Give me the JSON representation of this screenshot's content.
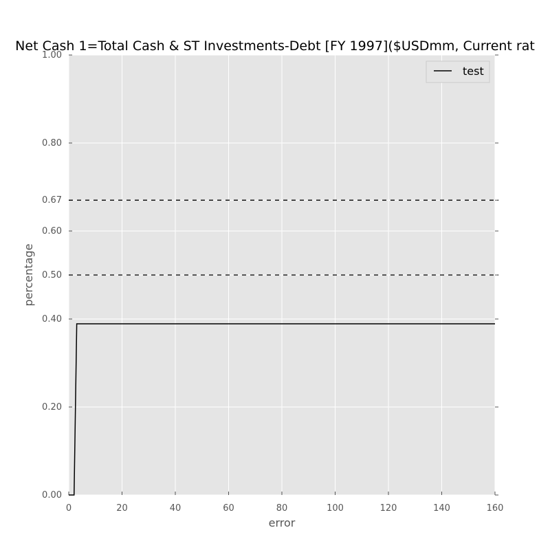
{
  "chart_data": {
    "type": "line",
    "title": "Net Cash 1=Total Cash & ST Investments-Debt [FY 1997]($USDmm, Current rat",
    "xlabel": "error",
    "ylabel": "percentage",
    "xlim": [
      0,
      160
    ],
    "ylim": [
      0,
      1
    ],
    "x_ticks": [
      0,
      20,
      40,
      60,
      80,
      100,
      120,
      140,
      160
    ],
    "x_tick_labels": [
      "0",
      "20",
      "40",
      "60",
      "80",
      "100",
      "120",
      "140",
      "160"
    ],
    "y_ticks": [
      0,
      0.2,
      0.4,
      0.5,
      0.6,
      0.67,
      0.8,
      1.0
    ],
    "y_tick_labels": [
      "0.00",
      "0.20",
      "0.40",
      "0.50",
      "0.60",
      "0.67",
      "0.80",
      "1.00"
    ],
    "grid": true,
    "legend_position": "top-right",
    "series": [
      {
        "name": "test",
        "color": "#000000",
        "x": [
          0,
          1,
          2,
          3,
          160
        ],
        "y": [
          0,
          0,
          0,
          0.389,
          0.389
        ]
      }
    ],
    "reference_lines": [
      {
        "y": 0.67,
        "style": "dashed",
        "color": "#000000"
      },
      {
        "y": 0.5,
        "style": "dashed",
        "color": "#000000"
      }
    ],
    "colors": {
      "plot_background": "#e5e5e5",
      "grid": "#ffffff"
    }
  }
}
